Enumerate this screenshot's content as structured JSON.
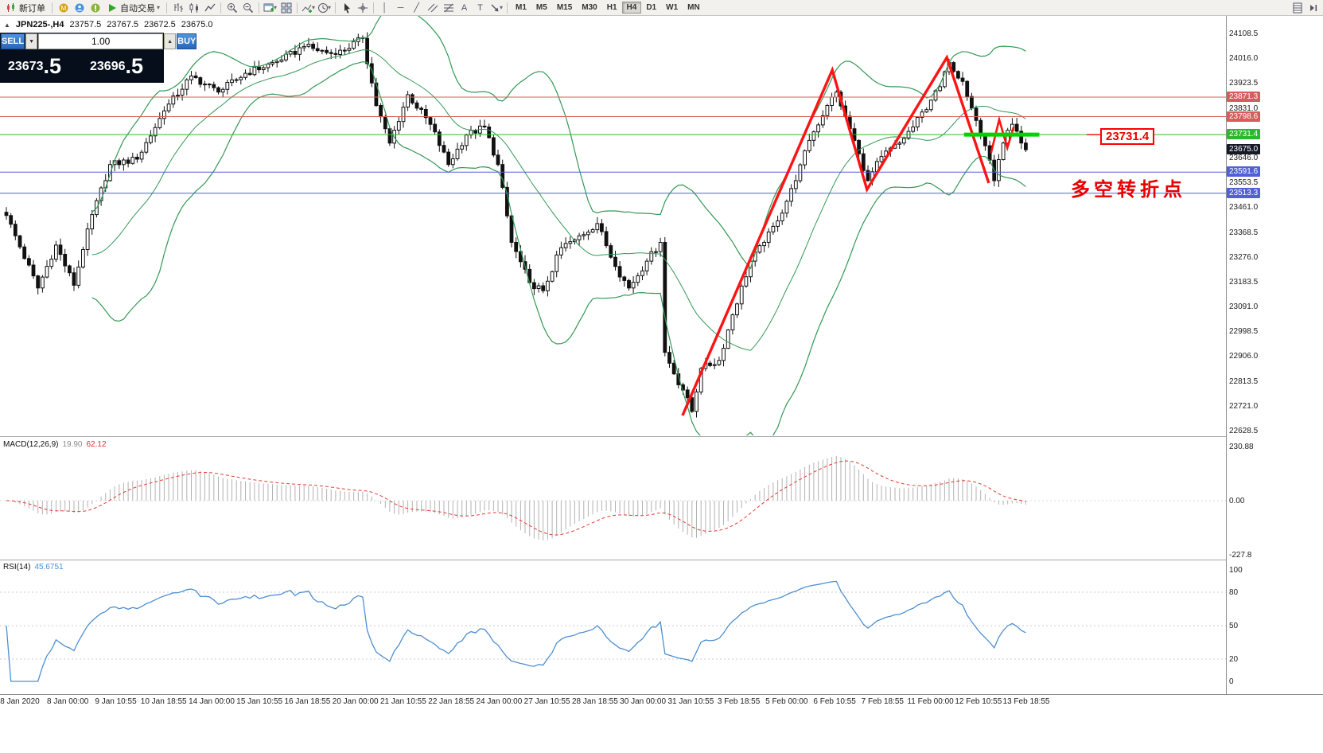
{
  "toolbar": {
    "new_order_label": "新订单",
    "autotrade_label": "自动交易",
    "timeframes": [
      "M1",
      "M5",
      "M15",
      "M30",
      "H1",
      "H4",
      "D1",
      "W1",
      "MN"
    ],
    "active_timeframe": "H4"
  },
  "chart_header": {
    "symbol_period": "JPN225-,H4",
    "open": "23757.5",
    "high": "23767.5",
    "low": "23672.5",
    "close": "23675.0"
  },
  "order_panel": {
    "sell_label": "SELL",
    "buy_label": "BUY",
    "volume": "1.00",
    "sell_price_int": "23673",
    "sell_price_frac": ".5",
    "buy_price_int": "23696",
    "buy_price_frac": ".5"
  },
  "indicators": {
    "macd_name": "MACD(12,26,9)",
    "macd_value1": "19.90",
    "macd_value2": "62.12",
    "rsi_name": "RSI(14)",
    "rsi_value": "45.6751"
  },
  "chart_data": {
    "type": "candlestick",
    "symbol": "JPN225-",
    "timeframe": "H4",
    "ohlc_current": [
      23757.5,
      23767.5,
      23672.5,
      23675.0
    ],
    "price_range": [
      22590,
      24150
    ],
    "axis_ticks": [
      "24108.5",
      "24016.0",
      "23923.5",
      "23831.0",
      "23646.0",
      "23553.5",
      "23461.0",
      "23368.5",
      "23276.0",
      "23183.5",
      "23091.0",
      "22998.5",
      "22906.0",
      "22813.5",
      "22721.0",
      "22628.5"
    ],
    "horizontal_lines": [
      {
        "price": 23871.3,
        "color": "#d95c5c"
      },
      {
        "price": 23798.6,
        "color": "#d95c5c"
      },
      {
        "price": 23731.4,
        "color": "#2db82d"
      },
      {
        "price": 23591.6,
        "color": "#5060d5"
      },
      {
        "price": 23513.3,
        "color": "#5060d5"
      }
    ],
    "current_price": 23675.0,
    "bollinger": {
      "period": 20,
      "deviation": 2,
      "color": "#339955"
    },
    "macd": {
      "fast": 12,
      "slow": 26,
      "signal": 9,
      "scale": [
        "230.88",
        "0.00",
        "-227.8"
      ],
      "histogram_color": "#b2b2b2",
      "signal_color": "#e53935"
    },
    "rsi": {
      "period": 14,
      "levels": [
        100,
        80,
        50,
        20,
        0
      ],
      "line_color": "#4d8fd1"
    },
    "candle_count": 227,
    "close_waypoints": [
      [
        0,
        23430
      ],
      [
        7,
        23160
      ],
      [
        11,
        23320
      ],
      [
        15,
        23170
      ],
      [
        18,
        23380
      ],
      [
        23,
        23620
      ],
      [
        29,
        23640
      ],
      [
        35,
        23820
      ],
      [
        41,
        23950
      ],
      [
        47,
        23890
      ],
      [
        53,
        23960
      ],
      [
        61,
        24010
      ],
      [
        66,
        24060
      ],
      [
        73,
        24030
      ],
      [
        79,
        24090
      ],
      [
        82,
        23840
      ],
      [
        85,
        23700
      ],
      [
        89,
        23880
      ],
      [
        94,
        23770
      ],
      [
        98,
        23620
      ],
      [
        102,
        23730
      ],
      [
        106,
        23760
      ],
      [
        109,
        23620
      ],
      [
        112,
        23330
      ],
      [
        116,
        23180
      ],
      [
        119,
        23150
      ],
      [
        123,
        23310
      ],
      [
        126,
        23340
      ],
      [
        131,
        23400
      ],
      [
        135,
        23240
      ],
      [
        138,
        23160
      ],
      [
        142,
        23260
      ],
      [
        145,
        23330
      ],
      [
        146,
        22920
      ],
      [
        148,
        22840
      ],
      [
        150,
        22780
      ],
      [
        152,
        22700
      ],
      [
        154,
        22860
      ],
      [
        158,
        22890
      ],
      [
        161,
        23060
      ],
      [
        165,
        23260
      ],
      [
        168,
        23330
      ],
      [
        171,
        23410
      ],
      [
        175,
        23560
      ],
      [
        178,
        23710
      ],
      [
        182,
        23840
      ],
      [
        184,
        23890
      ],
      [
        186,
        23800
      ],
      [
        189,
        23660
      ],
      [
        191,
        23560
      ],
      [
        194,
        23650
      ],
      [
        198,
        23700
      ],
      [
        201,
        23760
      ],
      [
        205,
        23860
      ],
      [
        207,
        23910
      ],
      [
        209,
        24000
      ],
      [
        212,
        23930
      ],
      [
        214,
        23830
      ],
      [
        217,
        23690
      ],
      [
        219,
        23560
      ],
      [
        221,
        23700
      ],
      [
        223,
        23770
      ],
      [
        225,
        23700
      ],
      [
        226,
        23675
      ]
    ],
    "time_labels": [
      "8 Jan 2020",
      "8 Jan 00:00",
      "9 Jan 10:55",
      "10 Jan 18:55",
      "14 Jan 00:00",
      "15 Jan 10:55",
      "16 Jan 18:55",
      "20 Jan 00:00",
      "21 Jan 10:55",
      "22 Jan 18:55",
      "24 Jan 00:00",
      "27 Jan 10:55",
      "28 Jan 18:55",
      "30 Jan 00:00",
      "31 Jan 10:55",
      "3 Feb 18:55",
      "5 Feb 00:00",
      "6 Feb 10:55",
      "7 Feb 18:55",
      "11 Feb 00:00",
      "12 Feb 10:55",
      "13 Feb 18:55"
    ],
    "annotations": {
      "zigzag_idx_price": [
        [
          149.9,
          22685
        ],
        [
          183.1,
          23972
        ],
        [
          190.8,
          23527
        ],
        [
          208.5,
          24019
        ],
        [
          217.8,
          23551
        ]
      ],
      "mini_zigzag_idx_price": [
        [
          218.3,
          23664
        ],
        [
          220.1,
          23788
        ],
        [
          221.9,
          23682
        ],
        [
          223.3,
          23759
        ]
      ],
      "green_segment": {
        "price": 23731.4,
        "i1": 212.3,
        "i2": 229.0,
        "color": "#00d300"
      },
      "price_callout": "23731.4",
      "turning_point_text": "多空转折点",
      "annotation_color": "#ff1414"
    }
  }
}
